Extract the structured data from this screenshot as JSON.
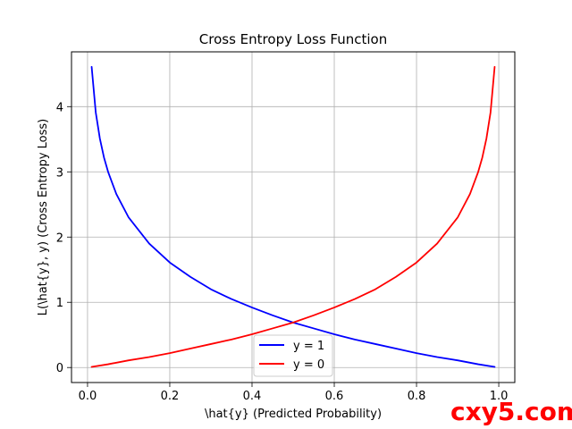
{
  "chart_data": {
    "type": "line",
    "title": "Cross Entropy Loss Function",
    "xlabel": "\\hat{y} (Predicted Probability)",
    "ylabel": "L(\\hat{y}, y) (Cross Entropy Loss)",
    "xlim": [
      -0.039,
      1.039
    ],
    "ylim": [
      -0.23,
      4.84
    ],
    "xticks": [
      0.0,
      0.2,
      0.4,
      0.6,
      0.8,
      1.0
    ],
    "xtick_labels": [
      "0.0",
      "0.2",
      "0.4",
      "0.6",
      "0.8",
      "1.0"
    ],
    "yticks": [
      0,
      1,
      2,
      3,
      4
    ],
    "ytick_labels": [
      "0",
      "1",
      "2",
      "3",
      "4"
    ],
    "grid": true,
    "legend_position": "lower center",
    "series": [
      {
        "name": "y = 1",
        "color": "#0000ff",
        "x": [
          0.01,
          0.02,
          0.03,
          0.04,
          0.05,
          0.07,
          0.1,
          0.15,
          0.2,
          0.25,
          0.3,
          0.35,
          0.4,
          0.45,
          0.5,
          0.55,
          0.6,
          0.65,
          0.7,
          0.75,
          0.8,
          0.85,
          0.9,
          0.95,
          0.99
        ],
        "y": [
          4.61,
          3.91,
          3.51,
          3.22,
          3.0,
          2.66,
          2.3,
          1.9,
          1.61,
          1.39,
          1.2,
          1.05,
          0.92,
          0.8,
          0.69,
          0.6,
          0.51,
          0.43,
          0.36,
          0.29,
          0.22,
          0.16,
          0.11,
          0.05,
          0.01
        ]
      },
      {
        "name": "y = 0",
        "color": "#ff0000",
        "x": [
          0.01,
          0.05,
          0.1,
          0.15,
          0.2,
          0.25,
          0.3,
          0.35,
          0.4,
          0.45,
          0.5,
          0.55,
          0.6,
          0.65,
          0.7,
          0.75,
          0.8,
          0.85,
          0.9,
          0.93,
          0.95,
          0.96,
          0.97,
          0.98,
          0.99
        ],
        "y": [
          0.01,
          0.05,
          0.11,
          0.16,
          0.22,
          0.29,
          0.36,
          0.43,
          0.51,
          0.6,
          0.69,
          0.8,
          0.92,
          1.05,
          1.2,
          1.39,
          1.61,
          1.9,
          2.3,
          2.66,
          3.0,
          3.22,
          3.51,
          3.91,
          4.61
        ]
      }
    ]
  },
  "watermark": "cxy5.com"
}
